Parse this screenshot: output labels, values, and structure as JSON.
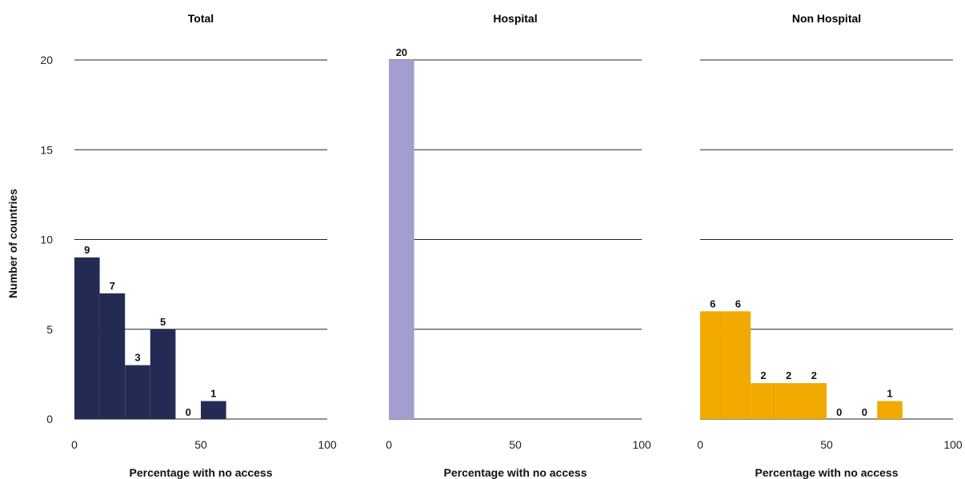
{
  "chart_data": [
    {
      "type": "bar",
      "title": "Total",
      "xlabel": "Percentage with no access",
      "ylabel": "Number of countries",
      "bin_width": 10,
      "bin_starts": [
        0,
        10,
        20,
        30,
        40,
        50
      ],
      "values": [
        9,
        7,
        3,
        5,
        0,
        1
      ],
      "color": "#232b55",
      "xlim": [
        0,
        100
      ],
      "ylim": [
        0,
        20
      ],
      "xticks": [
        "0",
        "50",
        "100"
      ],
      "yticks": [
        "0",
        "5",
        "10",
        "15",
        "20"
      ]
    },
    {
      "type": "bar",
      "title": "Hospital",
      "xlabel": "Percentage with no access",
      "bin_width": 10,
      "bin_starts": [
        0
      ],
      "values": [
        20
      ],
      "color": "#a29ecf",
      "xlim": [
        0,
        100
      ],
      "ylim": [
        0,
        20
      ],
      "xticks": [
        "0",
        "50",
        "100"
      ]
    },
    {
      "type": "bar",
      "title": "Non Hospital",
      "xlabel": "Percentage with no access",
      "bin_width": 10,
      "bin_starts": [
        0,
        10,
        20,
        30,
        40,
        50,
        60,
        70
      ],
      "values": [
        6,
        6,
        2,
        2,
        2,
        0,
        0,
        1
      ],
      "color": "#f2a900",
      "xlim": [
        0,
        100
      ],
      "ylim": [
        0,
        20
      ],
      "xticks": [
        "0",
        "50",
        "100"
      ]
    }
  ]
}
